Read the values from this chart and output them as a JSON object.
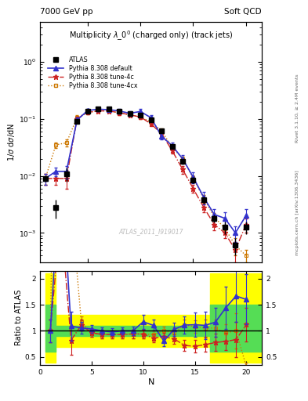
{
  "title_main": "Multiplicity $\\lambda\\_0^0$ (charged only) (track jets)",
  "top_left_label": "7000 GeV pp",
  "top_right_label": "Soft QCD",
  "watermark": "ATLAS_2011_I919017",
  "xlabel": "N",
  "ylabel_top": "1/$\\sigma$ d$\\sigma$/dN",
  "ylabel_bot": "Ratio to ATLAS",
  "right_label_1": "Rivet 3.1.10, ≥ 2.4M events",
  "right_label_2": "mcplots.cern.ch [arXiv:1306.3436]",
  "atlas_x": [
    1,
    2,
    3,
    4,
    5,
    6,
    7,
    8,
    9,
    10,
    11,
    12,
    13,
    14,
    15,
    16,
    17,
    18,
    19,
    20
  ],
  "atlas_y": [
    0.009,
    0.0028,
    0.011,
    0.09,
    0.135,
    0.148,
    0.148,
    0.138,
    0.125,
    0.115,
    0.095,
    0.062,
    0.033,
    0.018,
    0.0085,
    0.0038,
    0.0018,
    0.00125,
    0.0006,
    0.00125
  ],
  "atlas_yerr_lo": [
    0.001,
    0.001,
    0.003,
    0.008,
    0.008,
    0.008,
    0.008,
    0.008,
    0.008,
    0.008,
    0.007,
    0.005,
    0.003,
    0.002,
    0.001,
    0.0005,
    0.0003,
    0.0003,
    0.0002,
    0.0003
  ],
  "atlas_yerr_hi": [
    0.001,
    0.001,
    0.003,
    0.008,
    0.008,
    0.008,
    0.008,
    0.008,
    0.008,
    0.008,
    0.007,
    0.005,
    0.003,
    0.002,
    0.001,
    0.0005,
    0.0003,
    0.0003,
    0.0002,
    0.0003
  ],
  "def_x": [
    1,
    2,
    3,
    4,
    5,
    6,
    7,
    8,
    9,
    10,
    11,
    12,
    13,
    14,
    15,
    16,
    17,
    18,
    19,
    20
  ],
  "def_y": [
    0.009,
    0.012,
    0.012,
    0.095,
    0.14,
    0.148,
    0.145,
    0.138,
    0.125,
    0.135,
    0.105,
    0.05,
    0.034,
    0.02,
    0.0095,
    0.0042,
    0.0021,
    0.0018,
    0.001,
    0.002
  ],
  "def_yerr": [
    0.002,
    0.002,
    0.003,
    0.01,
    0.01,
    0.01,
    0.01,
    0.01,
    0.01,
    0.015,
    0.01,
    0.006,
    0.004,
    0.003,
    0.002,
    0.001,
    0.0005,
    0.0005,
    0.0003,
    0.0006
  ],
  "c4_x": [
    1,
    2,
    3,
    4,
    5,
    6,
    7,
    8,
    9,
    10,
    11,
    12,
    13,
    14,
    15,
    16,
    17,
    18,
    19,
    20
  ],
  "c4_y": [
    0.009,
    0.009,
    0.009,
    0.1,
    0.13,
    0.138,
    0.138,
    0.128,
    0.118,
    0.108,
    0.082,
    0.055,
    0.028,
    0.013,
    0.006,
    0.0028,
    0.0014,
    0.001,
    0.0005,
    0.0014
  ],
  "c4_yerr": [
    0.002,
    0.002,
    0.003,
    0.01,
    0.01,
    0.01,
    0.01,
    0.01,
    0.01,
    0.01,
    0.007,
    0.005,
    0.003,
    0.002,
    0.001,
    0.0005,
    0.0003,
    0.0002,
    0.0002,
    0.0004
  ],
  "cx4_x": [
    1,
    2,
    3,
    4,
    5,
    6,
    7,
    8,
    9,
    10,
    11,
    12,
    13,
    14,
    15,
    16,
    17,
    18,
    19,
    20
  ],
  "cx4_y": [
    0.009,
    0.035,
    0.038,
    0.105,
    0.13,
    0.138,
    0.138,
    0.128,
    0.118,
    0.108,
    0.088,
    0.062,
    0.032,
    0.02,
    0.0092,
    0.004,
    0.0019,
    0.0012,
    0.0006,
    0.0004
  ],
  "cx4_yerr": [
    0.002,
    0.004,
    0.005,
    0.01,
    0.01,
    0.01,
    0.01,
    0.01,
    0.01,
    0.01,
    0.008,
    0.005,
    0.003,
    0.002,
    0.001,
    0.0006,
    0.0003,
    0.0002,
    0.0002,
    0.0001
  ],
  "color_atlas": "#000000",
  "color_def": "#3333cc",
  "color_4c": "#cc2222",
  "color_4cx": "#cc7700",
  "ylim_main": [
    0.0003,
    5
  ],
  "xlim": [
    0.5,
    21.5
  ],
  "ratio_ylim": [
    0.35,
    2.15
  ],
  "ratio_yticks": [
    0.5,
    1.0,
    1.5,
    2.0
  ],
  "ratio_yticklabels": [
    "0.5",
    "1",
    "1.5",
    "2"
  ],
  "band_green_inner": [
    0.9,
    1.1
  ],
  "band_yellow_outer": [
    0.7,
    1.3
  ],
  "band_green_inner_wide": [
    0.6,
    1.5
  ],
  "band_yellow_outer_wide": [
    0.4,
    2.1
  ],
  "band_narrow_xrange": [
    1.5,
    16.5
  ],
  "band_wide_xrange_lo": [
    0.5,
    1.5
  ],
  "band_wide_xrange_hi": [
    16.5,
    21.5
  ]
}
